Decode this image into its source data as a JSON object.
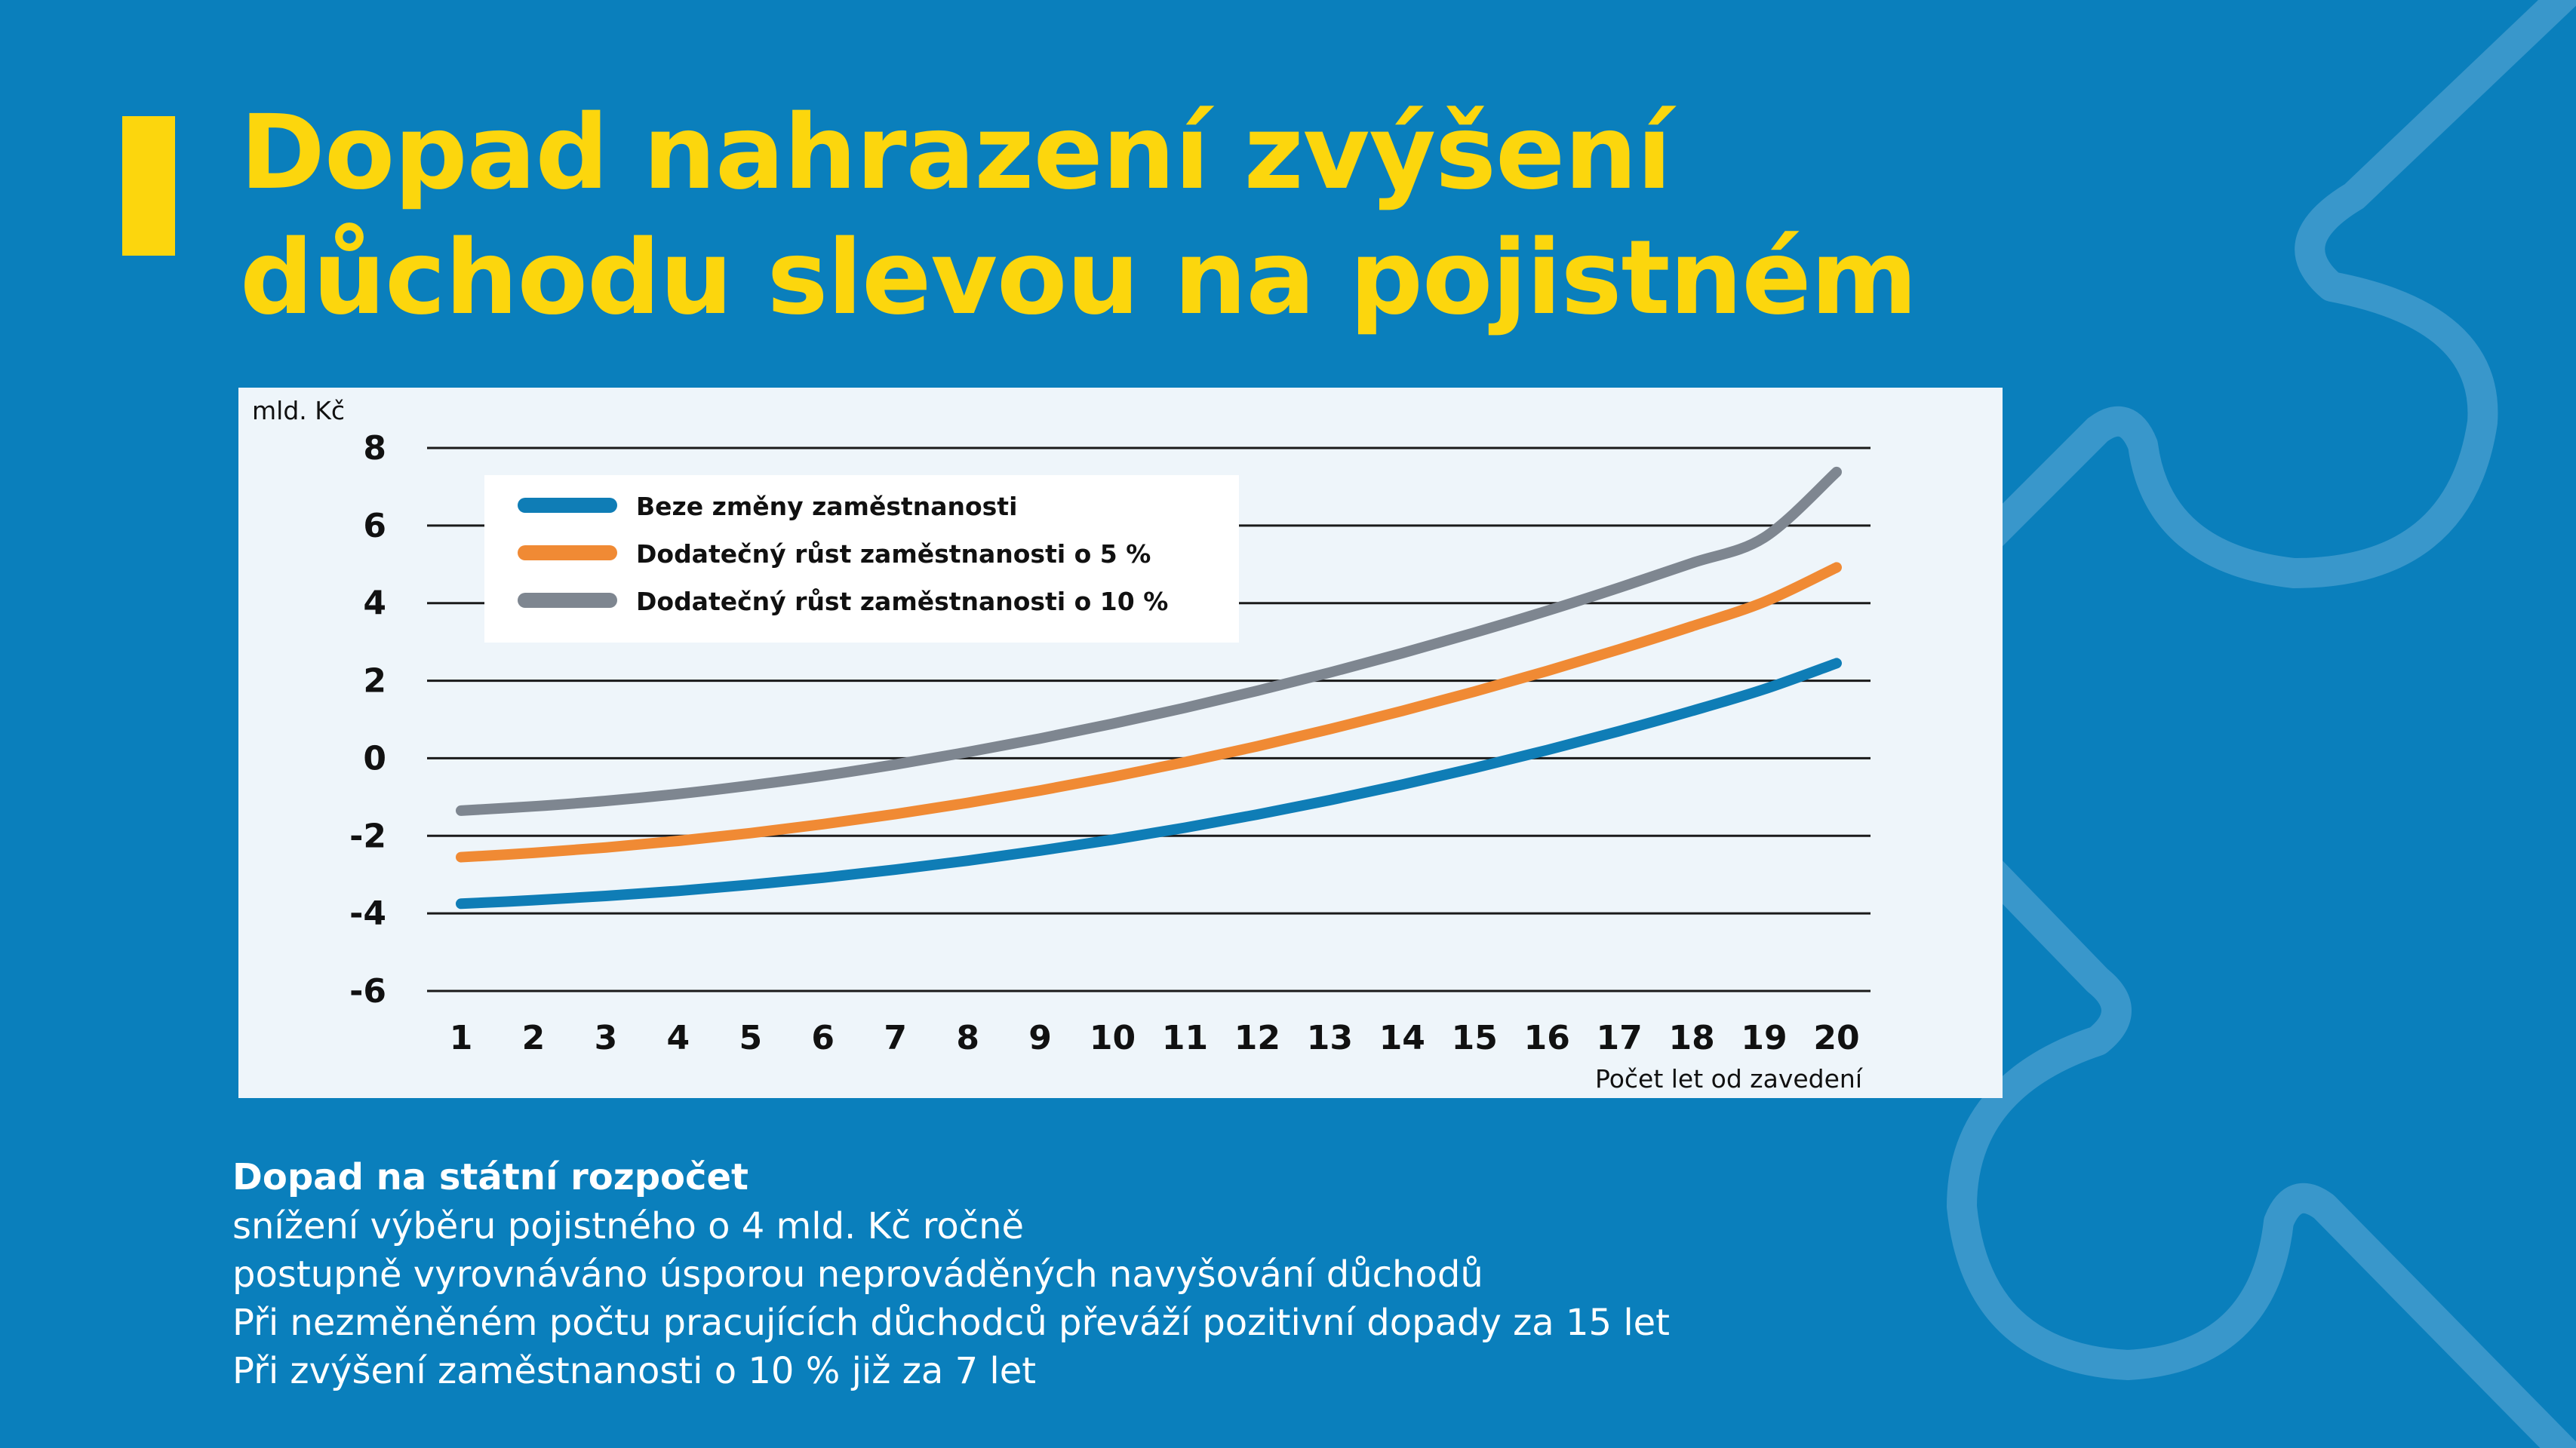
{
  "title_lines": [
    "Dopad nahrazení zvýšení",
    "důchodu slevou na pojistném"
  ],
  "chart_data": {
    "type": "line",
    "ylabel": "mld. Kč",
    "xlabel": "Počet let od zavedení",
    "x": [
      1,
      2,
      3,
      4,
      5,
      6,
      7,
      8,
      9,
      10,
      11,
      12,
      13,
      14,
      15,
      16,
      17,
      18,
      19,
      20
    ],
    "ylim": [
      -6,
      8
    ],
    "yticks": [
      8,
      6,
      4,
      2,
      0,
      -2,
      -4,
      -6
    ],
    "grid": true,
    "legend_position": "top-left",
    "series": [
      {
        "name": "Beze změny zaměstnanosti",
        "color": "#0f7db6",
        "values": [
          -3.75,
          -3.66,
          -3.55,
          -3.42,
          -3.26,
          -3.08,
          -2.87,
          -2.64,
          -2.38,
          -2.1,
          -1.79,
          -1.45,
          -1.08,
          -0.68,
          -0.25,
          0.21,
          0.7,
          1.22,
          1.78,
          2.45
        ]
      },
      {
        "name": "Dodatečný růst zaměstnanosti o 5 %",
        "color": "#f08a34",
        "values": [
          -2.55,
          -2.44,
          -2.3,
          -2.13,
          -1.93,
          -1.7,
          -1.44,
          -1.15,
          -0.83,
          -0.48,
          -0.1,
          0.31,
          0.75,
          1.22,
          1.72,
          2.25,
          2.81,
          3.4,
          4.03,
          4.92
        ]
      },
      {
        "name": "Dodatečný růst zaměstnanosti o 10 %",
        "color": "#7e8690",
        "values": [
          -1.35,
          -1.24,
          -1.1,
          -0.92,
          -0.7,
          -0.45,
          -0.16,
          0.16,
          0.51,
          0.89,
          1.3,
          1.74,
          2.21,
          2.71,
          3.24,
          3.8,
          4.4,
          5.03,
          5.69,
          7.38
        ]
      }
    ]
  },
  "footer": {
    "heading": "Dopad na státní rozpočet",
    "lines": [
      "snížení výběru pojistného o 4 mld. Kč ročně",
      "postupně vyrovnáváno úsporou neprováděných navyšování důchodů",
      "Při nezměněném počtu pracujících důchodců převáží pozitivní dopady za 15 let",
      "Při zvýšení zaměstnanosti o 10 % již za 7 let"
    ]
  },
  "colors": {
    "background": "#0a7fbc",
    "accent": "#fcd60d",
    "card": "#eef5fa",
    "grid": "#1a1a1a"
  }
}
